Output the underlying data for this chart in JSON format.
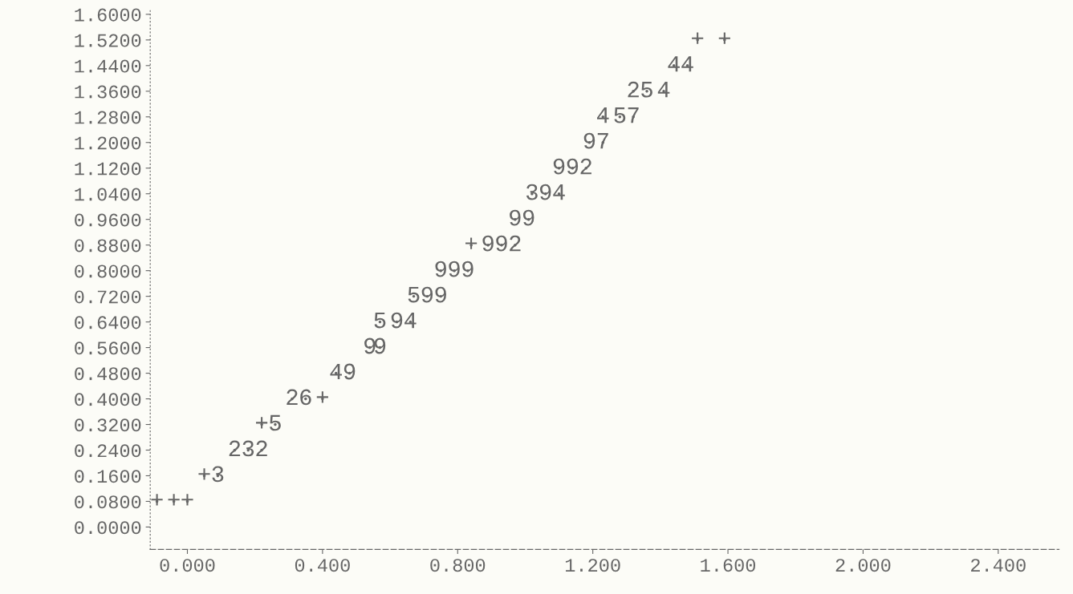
{
  "chart_data": {
    "type": "scatter",
    "grid": false,
    "xlim": [
      -0.11,
      2.58
    ],
    "ylim": [
      -0.07,
      1.615
    ],
    "xticks": [
      {
        "value": 0,
        "label": "0.000"
      },
      {
        "value": 0.4,
        "label": "0.400"
      },
      {
        "value": 0.8,
        "label": "0.800"
      },
      {
        "value": 1.2,
        "label": "1.200"
      },
      {
        "value": 1.6,
        "label": "1.600"
      },
      {
        "value": 2.0,
        "label": "2.000"
      },
      {
        "value": 2.4,
        "label": "2.400"
      }
    ],
    "yticks": [
      {
        "value": 0,
        "label": "0.0000"
      },
      {
        "value": 0.08,
        "label": "0.0800"
      },
      {
        "value": 0.16,
        "label": "0.1600"
      },
      {
        "value": 0.24,
        "label": "0.2400"
      },
      {
        "value": 0.32,
        "label": "0.3200"
      },
      {
        "value": 0.4,
        "label": "0.4000"
      },
      {
        "value": 0.48,
        "label": "0.4800"
      },
      {
        "value": 0.56,
        "label": "0.5600"
      },
      {
        "value": 0.64,
        "label": "0.6400"
      },
      {
        "value": 0.72,
        "label": "0.7200"
      },
      {
        "value": 0.8,
        "label": "0.8000"
      },
      {
        "value": 0.88,
        "label": "0.8800"
      },
      {
        "value": 0.96,
        "label": "0.9600"
      },
      {
        "value": 1.04,
        "label": "1.0400"
      },
      {
        "value": 1.12,
        "label": "1.1200"
      },
      {
        "value": 1.2,
        "label": "1.2000"
      },
      {
        "value": 1.28,
        "label": "1.2800"
      },
      {
        "value": 1.36,
        "label": "1.3600"
      },
      {
        "value": 1.44,
        "label": "1.4400"
      },
      {
        "value": 1.52,
        "label": "1.5200"
      },
      {
        "value": 1.6,
        "label": "1.6000"
      }
    ],
    "series": [
      {
        "name": "+",
        "color": "#666666",
        "x": [
          1.51,
          1.59,
          0.84,
          0.4,
          0.22,
          0.05,
          -0.09,
          -0.04,
          0.0
        ],
        "values": [
          1.52,
          1.52,
          0.88,
          0.4,
          0.32,
          0.16,
          0.08,
          0.08,
          0.08
        ]
      },
      {
        "name": "2",
        "color": "#666666",
        "x": [
          1.32,
          1.18,
          0.97,
          0.31,
          0.14,
          0.22
        ],
        "values": [
          1.36,
          1.12,
          0.88,
          0.4,
          0.24,
          0.24
        ]
      },
      {
        "name": "3",
        "color": "#666666",
        "x": [
          1.02,
          0.18,
          0.09
        ],
        "values": [
          1.04,
          0.24,
          0.16
        ]
      },
      {
        "name": "4",
        "color": "#666666",
        "x": [
          1.44,
          1.48,
          1.41,
          1.23,
          1.1,
          0.66,
          0.44
        ],
        "values": [
          1.44,
          1.44,
          1.36,
          1.28,
          1.04,
          0.64,
          0.48
        ]
      },
      {
        "name": "5",
        "color": "#666666",
        "x": [
          1.36,
          1.28,
          0.67,
          0.57,
          0.26
        ],
        "values": [
          1.36,
          1.28,
          0.72,
          0.64,
          0.32
        ]
      },
      {
        "name": "6",
        "color": "#666666",
        "x": [
          0.35
        ],
        "values": [
          0.4
        ]
      },
      {
        "name": "7",
        "color": "#666666",
        "x": [
          1.32,
          1.23
        ],
        "values": [
          1.28,
          1.2
        ]
      },
      {
        "name": "9",
        "color": "#666666",
        "x": [
          1.19,
          1.1,
          1.14,
          1.06,
          0.97,
          1.01,
          0.89,
          0.93,
          0.75,
          0.79,
          0.83,
          0.71,
          0.75,
          0.62,
          0.54,
          0.57,
          0.48
        ],
        "values": [
          1.2,
          1.12,
          1.12,
          1.04,
          0.96,
          0.96,
          0.88,
          0.88,
          0.8,
          0.8,
          0.8,
          0.72,
          0.72,
          0.64,
          0.56,
          0.56,
          0.48
        ]
      }
    ]
  }
}
